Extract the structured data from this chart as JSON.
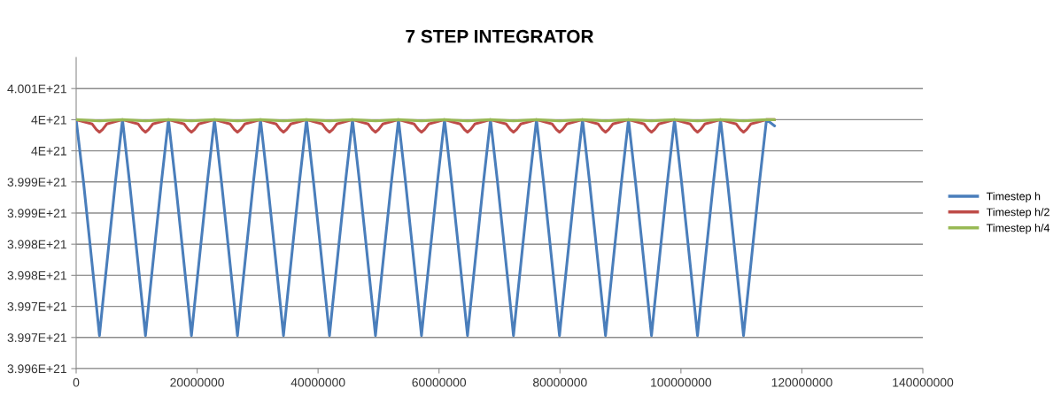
{
  "chart_data": {
    "type": "line",
    "title": "7 STEP INTEGRATOR",
    "xlim": [
      0,
      140000000
    ],
    "xticks": [
      0,
      20000000,
      40000000,
      60000000,
      80000000,
      100000000,
      120000000,
      140000000
    ],
    "ylim": [
      3.996e+21,
      4.001e+21
    ],
    "yticks": [
      {
        "value": 3.996e+21,
        "label": "3.996E+21"
      },
      {
        "value": 3.9965e+21,
        "label": "3.997E+21"
      },
      {
        "value": 3.997e+21,
        "label": "3.997E+21"
      },
      {
        "value": 3.9975e+21,
        "label": "3.998E+21"
      },
      {
        "value": 3.998e+21,
        "label": "3.998E+21"
      },
      {
        "value": 3.9985e+21,
        "label": "3.999E+21"
      },
      {
        "value": 3.999e+21,
        "label": "3.999E+21"
      },
      {
        "value": 3.9995e+21,
        "label": "4E+21"
      },
      {
        "value": 4e+21,
        "label": "4E+21"
      },
      {
        "value": 4.0005e+21,
        "label": "4.001E+21"
      }
    ],
    "grid": "y",
    "legend": "right",
    "marker": "none",
    "line_style": "solid",
    "series": [
      {
        "name": "Timestep h",
        "color": "#4a7ebb",
        "x": [
          0,
          1210000.0,
          2290000.0,
          3360000.0,
          3850000.0,
          4340000.0,
          5410000.0,
          6490000.0,
          7660000.0,
          8820000.0,
          9900000.0,
          10970000.0,
          11460000.0,
          11950000.0,
          13020000.0,
          14100000.0,
          15260000.0,
          16420000.0,
          17500000.0,
          18570000.0,
          19060000.0,
          19550000.0,
          20620000.0,
          21700000.0,
          22870000.0,
          24030000.0,
          25110000.0,
          26180000.0,
          26670000.0,
          27160000.0,
          28230000.0,
          29310000.0,
          30480000.0,
          31640000.0,
          32720000.0,
          33790000.0,
          34280000.0,
          34770000.0,
          35840000.0,
          36920000.0,
          38090000.0,
          39250000.0,
          40330000.0,
          41400000.0,
          41890000.0,
          42380000.0,
          43450000.0,
          44530000.0,
          45690000.0,
          46850000.0,
          47930000.0,
          49000000.0,
          49490000.0,
          49980000.0,
          51050000.0,
          52130000.0,
          53300000.0,
          54460000.0,
          55540000.0,
          56610000.0,
          57100000.0,
          57590000.0,
          58660000.0,
          59740000.0,
          60910000.0,
          62070000.0,
          63150000.0,
          64220000.0,
          64710000.0,
          65200000.0,
          66270000.0,
          67350000.0,
          68510000.0,
          69670000.0,
          70750000.0,
          71820000.0,
          72310000.0,
          72800000.0,
          73870000.0,
          74950000.0,
          76120000.0,
          77280000.0,
          78360000.0,
          79430000.0,
          79920000.0,
          80410000.0,
          81480000.0,
          82560000.0,
          83730000.0,
          84890000.0,
          85970000.0,
          87040000.0,
          87530000.0,
          88020000.0,
          89090000.0,
          90170000.0,
          91330000.0,
          92490000.0,
          93570000.0,
          94640000.0,
          95130000.0,
          95620000.0,
          96690000.0,
          97770000.0,
          98940000.0,
          100100000.0,
          101180000.0,
          102250000.0,
          102740000.0,
          103230000.0,
          104300000.0,
          105380000.0,
          106550000.0,
          107710000.0,
          108790000.0,
          109860000.0,
          110350000.0,
          110840000.0,
          111910000.0,
          112990000.0,
          114150000.0,
          115500000.0
        ],
        "values": [
          4e+21,
          3.999e+21,
          3.998e+21,
          3.997e+21,
          3.99653e+21,
          3.997e+21,
          3.998e+21,
          3.999e+21,
          4e+21,
          3.999e+21,
          3.998e+21,
          3.997e+21,
          3.99653e+21,
          3.997e+21,
          3.998e+21,
          3.999e+21,
          4e+21,
          3.999e+21,
          3.998e+21,
          3.997e+21,
          3.99653e+21,
          3.997e+21,
          3.998e+21,
          3.999e+21,
          4e+21,
          3.999e+21,
          3.998e+21,
          3.997e+21,
          3.99653e+21,
          3.997e+21,
          3.998e+21,
          3.999e+21,
          4e+21,
          3.999e+21,
          3.998e+21,
          3.997e+21,
          3.99653e+21,
          3.997e+21,
          3.998e+21,
          3.999e+21,
          4e+21,
          3.999e+21,
          3.998e+21,
          3.997e+21,
          3.99653e+21,
          3.997e+21,
          3.998e+21,
          3.999e+21,
          4e+21,
          3.999e+21,
          3.998e+21,
          3.997e+21,
          3.99653e+21,
          3.997e+21,
          3.998e+21,
          3.999e+21,
          4e+21,
          3.999e+21,
          3.998e+21,
          3.997e+21,
          3.99653e+21,
          3.997e+21,
          3.998e+21,
          3.999e+21,
          4e+21,
          3.999e+21,
          3.998e+21,
          3.997e+21,
          3.99653e+21,
          3.997e+21,
          3.998e+21,
          3.999e+21,
          4e+21,
          3.999e+21,
          3.998e+21,
          3.997e+21,
          3.99653e+21,
          3.997e+21,
          3.998e+21,
          3.999e+21,
          4e+21,
          3.999e+21,
          3.998e+21,
          3.997e+21,
          3.99653e+21,
          3.997e+21,
          3.998e+21,
          3.999e+21,
          4e+21,
          3.999e+21,
          3.998e+21,
          3.997e+21,
          3.99653e+21,
          3.997e+21,
          3.998e+21,
          3.999e+21,
          4e+21,
          3.999e+21,
          3.998e+21,
          3.997e+21,
          3.99653e+21,
          3.997e+21,
          3.998e+21,
          3.999e+21,
          4e+21,
          3.999e+21,
          3.998e+21,
          3.997e+21,
          3.99653e+21,
          3.997e+21,
          3.998e+21,
          3.999e+21,
          4e+21,
          3.999e+21,
          3.998e+21,
          3.997e+21,
          3.99653e+21,
          3.997e+21,
          3.998e+21,
          3.999e+21,
          4e+21,
          3.9999e+21
        ]
      },
      {
        "name": "Timestep h/2",
        "color": "#be4b48",
        "x": [
          0,
          2650000.0,
          3350000.0,
          3850000.0,
          4350000.0,
          5050000.0,
          7660000.0,
          10260000.0,
          10960000.0,
          11460000.0,
          11960000.0,
          12660000.0,
          15260000.0,
          17860000.0,
          18560000.0,
          19060000.0,
          19560000.0,
          20260000.0,
          22870000.0,
          25470000.0,
          26170000.0,
          26670000.0,
          27170000.0,
          27870000.0,
          30480000.0,
          33080000.0,
          33780000.0,
          34280000.0,
          34780000.0,
          35480000.0,
          38090000.0,
          40690000.0,
          41390000.0,
          41890000.0,
          42390000.0,
          43090000.0,
          45690000.0,
          48290000.0,
          48990000.0,
          49490000.0,
          49990000.0,
          50690000.0,
          53300000.0,
          55900000.0,
          56600000.0,
          57100000.0,
          57600000.0,
          58300000.0,
          60910000.0,
          63510000.0,
          64210000.0,
          64710000.0,
          65210000.0,
          65910000.0,
          68510000.0,
          71110000.0,
          71810000.0,
          72310000.0,
          72810000.0,
          73510000.0,
          76120000.0,
          78720000.0,
          79420000.0,
          79920000.0,
          80420000.0,
          81120000.0,
          83730000.0,
          86330000.0,
          87030000.0,
          87530000.0,
          88030000.0,
          88730000.0,
          91330000.0,
          93930000.0,
          94630000.0,
          95130000.0,
          95630000.0,
          96330000.0,
          98940000.0,
          101540000.0,
          102240000.0,
          102740000.0,
          103240000.0,
          103940000.0,
          106550000.0,
          109150000.0,
          109850000.0,
          110350000.0,
          110850000.0,
          111550000.0,
          114150000.0,
          115500000.0
        ],
        "values": [
          4e+21,
          3.99993e+21,
          3.99984e+21,
          3.9998e+21,
          3.99984e+21,
          3.99993e+21,
          4e+21,
          3.99993e+21,
          3.99984e+21,
          3.9998e+21,
          3.99984e+21,
          3.99993e+21,
          4e+21,
          3.99993e+21,
          3.99984e+21,
          3.9998e+21,
          3.99984e+21,
          3.99993e+21,
          4e+21,
          3.99993e+21,
          3.99984e+21,
          3.9998e+21,
          3.99984e+21,
          3.99993e+21,
          4e+21,
          3.99993e+21,
          3.99984e+21,
          3.9998e+21,
          3.99984e+21,
          3.99993e+21,
          4e+21,
          3.99993e+21,
          3.99984e+21,
          3.9998e+21,
          3.99984e+21,
          3.99993e+21,
          4e+21,
          3.99993e+21,
          3.99984e+21,
          3.9998e+21,
          3.99984e+21,
          3.99993e+21,
          4e+21,
          3.99993e+21,
          3.99984e+21,
          3.9998e+21,
          3.99984e+21,
          3.99993e+21,
          4e+21,
          3.99993e+21,
          3.99984e+21,
          3.9998e+21,
          3.99984e+21,
          3.99993e+21,
          4e+21,
          3.99993e+21,
          3.99984e+21,
          3.9998e+21,
          3.99984e+21,
          3.99993e+21,
          4e+21,
          3.99993e+21,
          3.99984e+21,
          3.9998e+21,
          3.99984e+21,
          3.99993e+21,
          4e+21,
          3.99993e+21,
          3.99984e+21,
          3.9998e+21,
          3.99984e+21,
          3.99993e+21,
          4e+21,
          3.99993e+21,
          3.99984e+21,
          3.9998e+21,
          3.99984e+21,
          3.99993e+21,
          4e+21,
          3.99993e+21,
          3.99984e+21,
          3.9998e+21,
          3.99984e+21,
          3.99993e+21,
          4e+21,
          3.99993e+21,
          3.99984e+21,
          3.9998e+21,
          3.99984e+21,
          3.99993e+21,
          4e+21,
          4e+21
        ]
      },
      {
        "name": "Timestep h/4",
        "color": "#98b954",
        "x": [
          0,
          3850000.0,
          7660000.0,
          11460000.0,
          15260000.0,
          19060000.0,
          22870000.0,
          26670000.0,
          30480000.0,
          34280000.0,
          38090000.0,
          41890000.0,
          45690000.0,
          49490000.0,
          53300000.0,
          57100000.0,
          60910000.0,
          64710000.0,
          68510000.0,
          72310000.0,
          76120000.0,
          79920000.0,
          83730000.0,
          87530000.0,
          91330000.0,
          95130000.0,
          98940000.0,
          102740000.0,
          106550000.0,
          110350000.0,
          114150000.0,
          115500000.0
        ],
        "values": [
          4e+21,
          3.99998e+21,
          4e+21,
          3.99998e+21,
          4e+21,
          3.99998e+21,
          4e+21,
          3.99998e+21,
          4e+21,
          3.99998e+21,
          4e+21,
          3.99998e+21,
          4e+21,
          3.99998e+21,
          4e+21,
          3.99998e+21,
          4e+21,
          3.99998e+21,
          4e+21,
          3.99998e+21,
          4e+21,
          3.99998e+21,
          4e+21,
          3.99998e+21,
          4e+21,
          3.99998e+21,
          4e+21,
          3.99998e+21,
          4e+21,
          3.99998e+21,
          4e+21,
          4e+21
        ]
      }
    ]
  }
}
